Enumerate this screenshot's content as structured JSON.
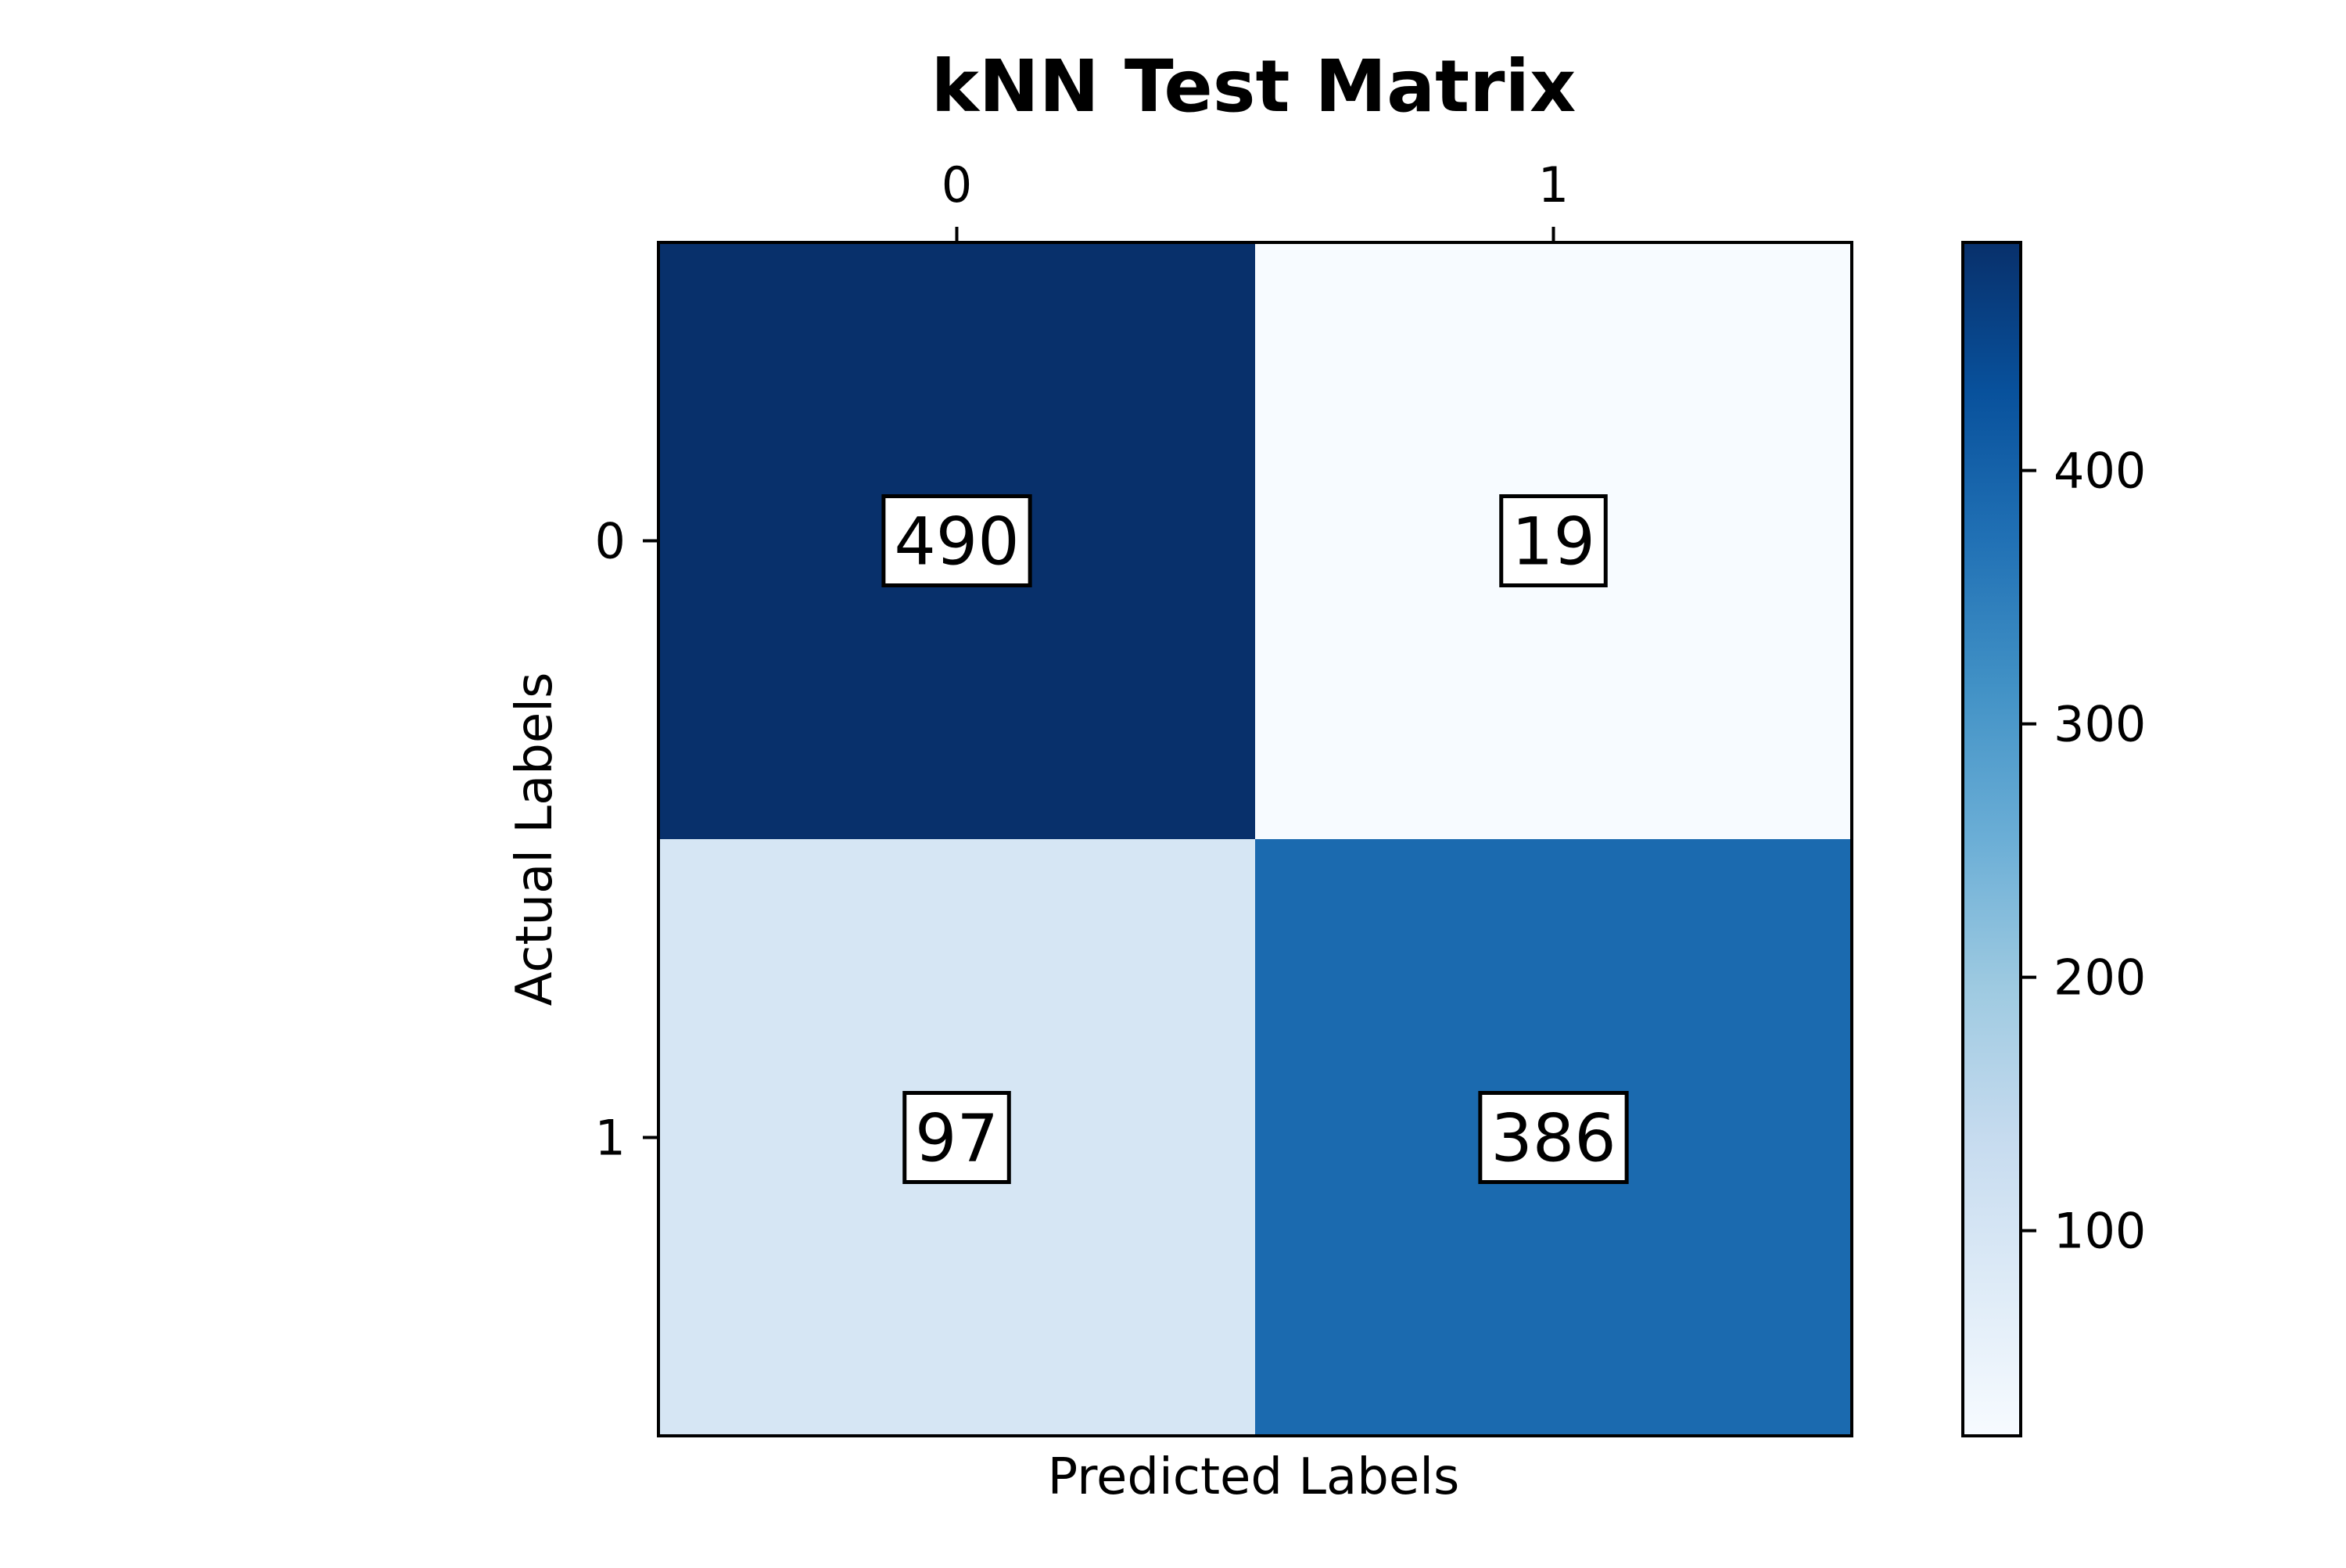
{
  "chart_data": {
    "type": "heatmap",
    "title": "kNN Test Matrix",
    "xlabel": "Predicted Labels",
    "ylabel": "Actual Labels",
    "x_categories": [
      "0",
      "1"
    ],
    "y_categories": [
      "0",
      "1"
    ],
    "x_axis_position": "top",
    "matrix": [
      [
        490,
        19
      ],
      [
        97,
        386
      ]
    ],
    "colorscale": "Blues",
    "colorbar": {
      "min": 19,
      "max": 490,
      "ticks": [
        100,
        200,
        300,
        400
      ],
      "tick_labels": [
        "100",
        "200",
        "300",
        "400"
      ]
    },
    "cell_label_style": "boxed",
    "grid": false
  }
}
